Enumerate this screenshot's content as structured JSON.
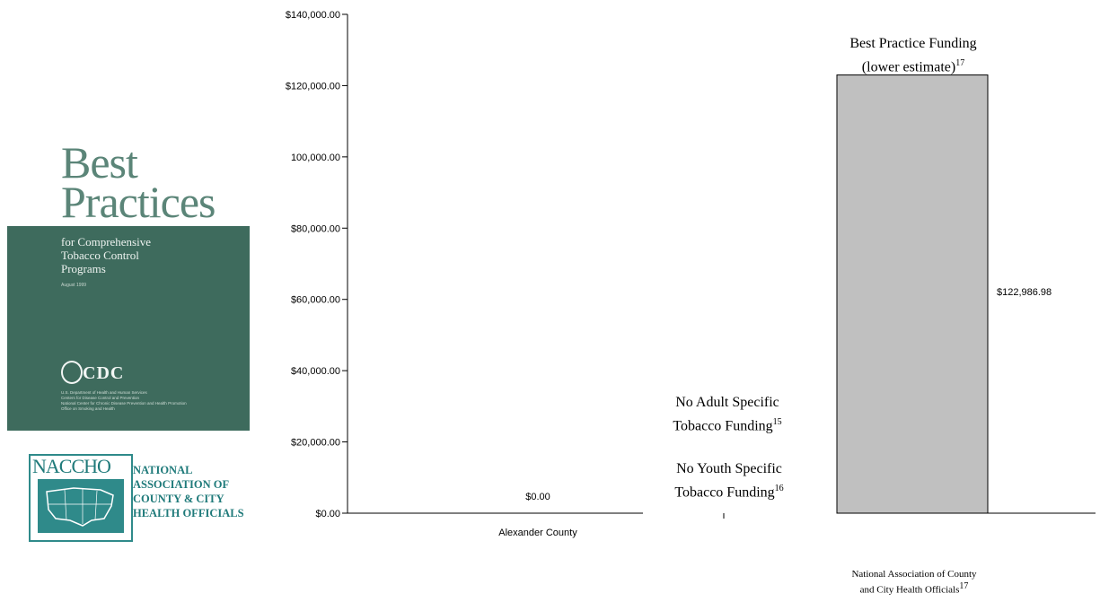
{
  "cover": {
    "title_line1": "Best",
    "title_line2": "Practices",
    "subtitle": "for Comprehensive\nTobacco Control\nPrograms",
    "date": "August 1999",
    "agency": "CDC",
    "fine_print": "U.S. Department of Health and Human Services\nCenters for Disease Control and Prevention\nNational Center for Chronic Disease Prevention and Health Promotion\nOffice on Smoking and Health"
  },
  "naccho_logo": {
    "abbr": "NACCHO",
    "name": "NATIONAL\nASSOCIATION OF\nCOUNTY & CITY\nHEALTH OFFICIALS"
  },
  "chart_data": {
    "type": "bar",
    "y_ticks": [
      "$140,000.00",
      "$120,000.00",
      "100,000.00",
      "$80,000.00",
      "$60,000.00",
      "$40,000.00",
      "$20,000.00",
      "$0.00"
    ],
    "ylim": [
      0,
      140000
    ],
    "grid": false,
    "bars": [
      {
        "category": "Alexander County",
        "value": 0,
        "value_label": "$0.00"
      },
      {
        "category": "",
        "value": 122986.98,
        "value_label": "$122,986.98",
        "annotation": "Best Practice Funding",
        "annotation_line2": "(lower estimate)",
        "annotation_sup": "17"
      }
    ],
    "notes": [
      {
        "line1": "No Adult Specific",
        "line2": "Tobacco Funding",
        "sup": "15"
      },
      {
        "line1": "No Youth Specific",
        "line2": "Tobacco Funding",
        "sup": "16"
      }
    ],
    "source": {
      "line1": "National Association of County",
      "line2": "and City Health Officials",
      "sup": "17"
    }
  }
}
